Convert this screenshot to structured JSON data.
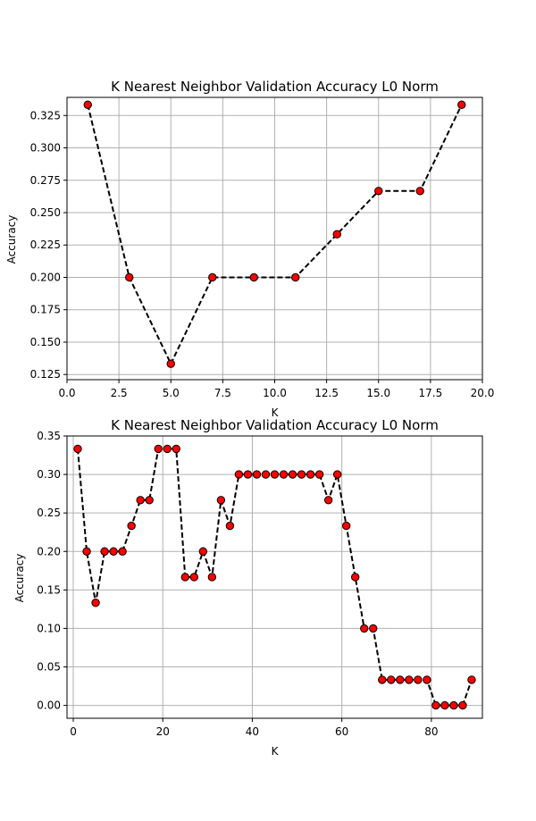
{
  "chart_data": [
    {
      "type": "line",
      "title": "K Nearest Neighbor Validation Accuracy L0 Norm",
      "xlabel": "K",
      "ylabel": "Accuracy",
      "xlim": [
        0,
        20
      ],
      "ylim": [
        0.121,
        0.339
      ],
      "xticks": [
        0.0,
        2.5,
        5.0,
        7.5,
        10.0,
        12.5,
        15.0,
        17.5,
        20.0
      ],
      "xtick_labels": [
        "0.0",
        "2.5",
        "5.0",
        "7.5",
        "10.0",
        "12.5",
        "15.0",
        "17.5",
        "20.0"
      ],
      "yticks": [
        0.125,
        0.15,
        0.175,
        0.2,
        0.225,
        0.25,
        0.275,
        0.3,
        0.325
      ],
      "ytick_labels": [
        "0.125",
        "0.150",
        "0.175",
        "0.200",
        "0.225",
        "0.250",
        "0.275",
        "0.300",
        "0.325"
      ],
      "grid": true,
      "line_color": "#000000",
      "marker_color": "#ff0000",
      "x": [
        1,
        3,
        5,
        7,
        9,
        11,
        13,
        15,
        17,
        19
      ],
      "y": [
        0.3333,
        0.2,
        0.1333,
        0.2,
        0.2,
        0.2,
        0.2333,
        0.2667,
        0.2667,
        0.3333
      ]
    },
    {
      "type": "line",
      "title": "K Nearest Neighbor Validation Accuracy L0 Norm",
      "xlabel": "K",
      "ylabel": "Accuracy",
      "xlim": [
        -1.4,
        91.4
      ],
      "ylim": [
        -0.0167,
        0.35
      ],
      "xticks": [
        0,
        20,
        40,
        60,
        80
      ],
      "xtick_labels": [
        "0",
        "20",
        "40",
        "60",
        "80"
      ],
      "yticks": [
        0.0,
        0.05,
        0.1,
        0.15,
        0.2,
        0.25,
        0.3,
        0.35
      ],
      "ytick_labels": [
        "0.00",
        "0.05",
        "0.10",
        "0.15",
        "0.20",
        "0.25",
        "0.30",
        "0.35"
      ],
      "grid": true,
      "line_color": "#000000",
      "marker_color": "#ff0000",
      "x": [
        1,
        3,
        5,
        7,
        9,
        11,
        13,
        15,
        17,
        19,
        21,
        23,
        25,
        27,
        29,
        31,
        33,
        35,
        37,
        39,
        41,
        43,
        45,
        47,
        49,
        51,
        53,
        55,
        57,
        59,
        61,
        63,
        65,
        67,
        69,
        71,
        73,
        75,
        77,
        79,
        81,
        83,
        85,
        87,
        89
      ],
      "y": [
        0.3333,
        0.2,
        0.1333,
        0.2,
        0.2,
        0.2,
        0.2333,
        0.2667,
        0.2667,
        0.3333,
        0.3333,
        0.3333,
        0.1667,
        0.1667,
        0.2,
        0.1667,
        0.2667,
        0.2333,
        0.3,
        0.3,
        0.3,
        0.3,
        0.3,
        0.3,
        0.3,
        0.3,
        0.3,
        0.3,
        0.2667,
        0.3,
        0.2333,
        0.1667,
        0.1,
        0.1,
        0.0333,
        0.0333,
        0.0333,
        0.0333,
        0.0333,
        0.0333,
        0.0,
        0.0,
        0.0,
        0.0,
        0.0333
      ]
    }
  ]
}
